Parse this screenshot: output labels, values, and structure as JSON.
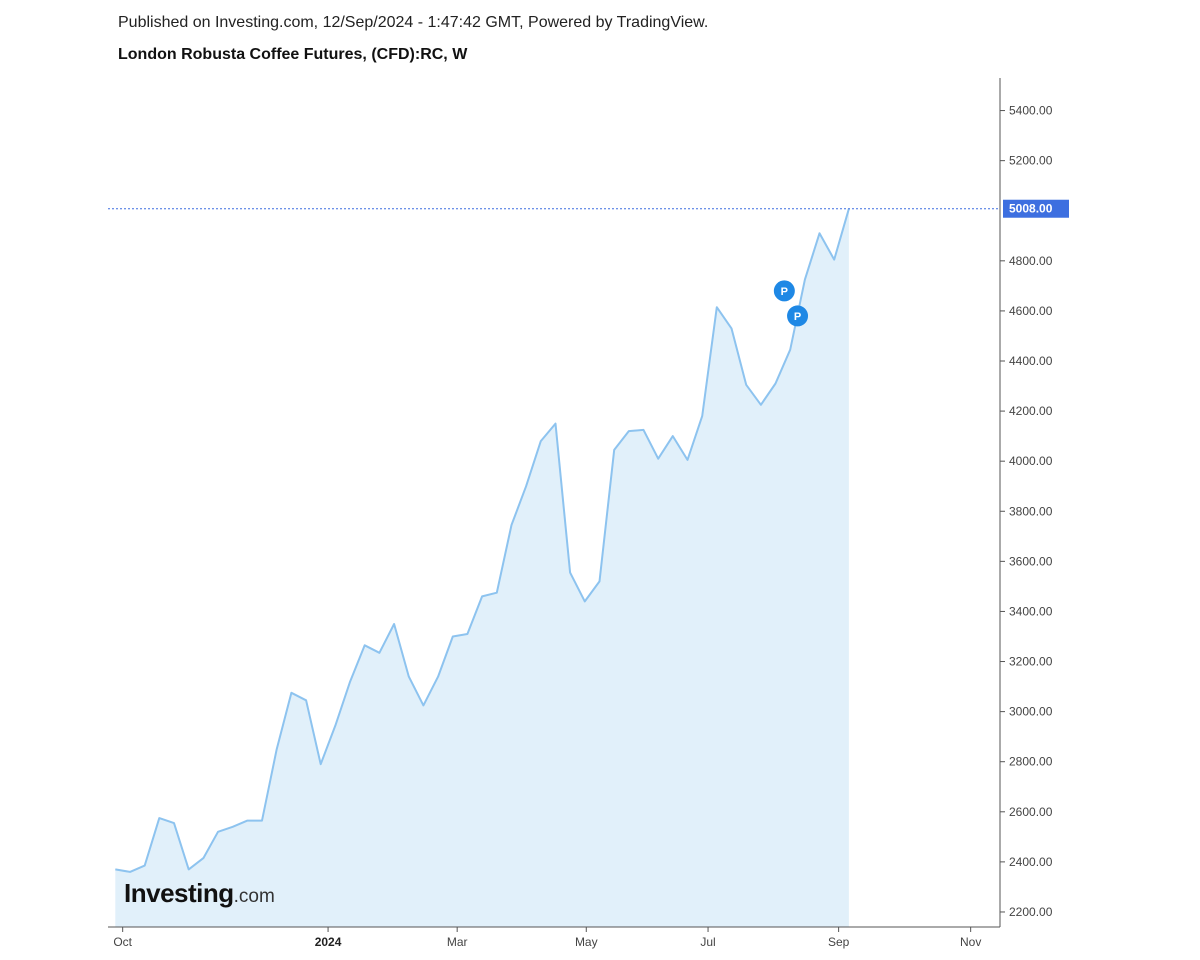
{
  "header": {
    "published": "Published on Investing.com, 12/Sep/2024 - 1:47:42 GMT, Powered by TradingView.",
    "title": "London Robusta Coffee Futures, (CFD):RC, W"
  },
  "logo": {
    "main": "Investing",
    "suffix": ".com"
  },
  "colors": {
    "line": "#8dc3ef",
    "fill": "#e1f0fa",
    "last_price_bg": "#3d6fe0",
    "marker": "#1e88e5"
  },
  "chart_data": {
    "type": "area",
    "title": "London Robusta Coffee Futures, (CFD):RC, W",
    "x_ticks": [
      {
        "label": "Oct",
        "week": 0.5,
        "bold": false
      },
      {
        "label": "2024",
        "week": 14.5,
        "bold": true
      },
      {
        "label": "Mar",
        "week": 23.3,
        "bold": false
      },
      {
        "label": "May",
        "week": 32.1,
        "bold": false
      },
      {
        "label": "Jul",
        "week": 40.4,
        "bold": false
      },
      {
        "label": "Sep",
        "week": 49.3,
        "bold": false
      },
      {
        "label": "Nov",
        "week": 58.3,
        "bold": false
      }
    ],
    "y_ticks": [
      2200,
      2400,
      2600,
      2800,
      3000,
      3200,
      3400,
      3600,
      3800,
      4000,
      4200,
      4400,
      4600,
      4800,
      5200,
      5400
    ],
    "y_tick_labels": [
      "2200.00",
      "2400.00",
      "2600.00",
      "2800.00",
      "3000.00",
      "3200.00",
      "3400.00",
      "3600.00",
      "3800.00",
      "4000.00",
      "4200.00",
      "4400.00",
      "4600.00",
      "4800.00",
      "5200.00",
      "5400.00"
    ],
    "ylim": [
      2140,
      5530
    ],
    "xlim": [
      -0.5,
      60.3
    ],
    "series": [
      {
        "values": [
          2370,
          2360,
          2385,
          2575,
          2555,
          2370,
          2415,
          2520,
          2540,
          2565,
          2565,
          2850,
          3075,
          3045,
          2790,
          2945,
          3120,
          3265,
          3235,
          3350,
          3140,
          3025,
          3140,
          3300,
          3310,
          3460,
          3475,
          3745,
          3900,
          4080,
          4150,
          3555,
          3440,
          3520,
          4045,
          4120,
          4125,
          4010,
          4100,
          4005,
          4180,
          4615,
          4530,
          4305,
          4225,
          4310,
          4445,
          4725,
          4910,
          4805,
          5008
        ]
      }
    ],
    "last_price": 5008,
    "last_price_label": "5008.00",
    "markers": [
      {
        "label": "P",
        "week": 45.6,
        "value": 4680
      },
      {
        "label": "P",
        "week": 46.5,
        "value": 4580
      }
    ],
    "grid": false,
    "legend": "none"
  }
}
